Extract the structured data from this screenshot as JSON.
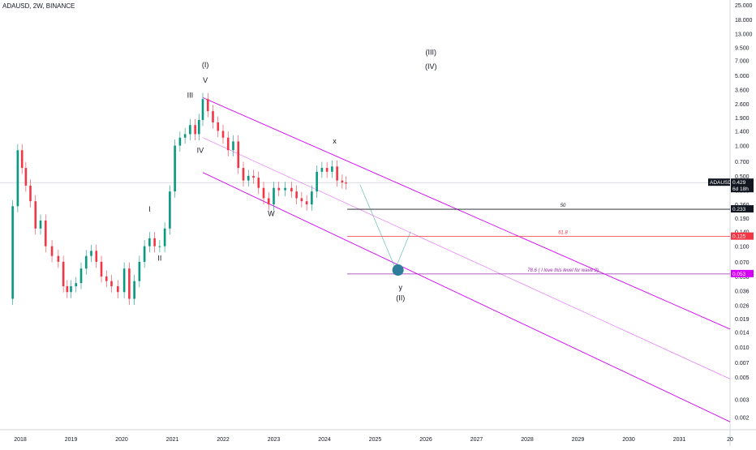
{
  "header": {
    "symbol_line": "ADAUSD, 2W, BINANCE"
  },
  "chart_data": {
    "type": "candlestick",
    "y_scale": "log",
    "ylim": [
      0.0015,
      28
    ],
    "xlim": [
      2017.6,
      2032.0
    ],
    "x_ticks": [
      "2018",
      "2019",
      "2020",
      "2021",
      "2022",
      "2023",
      "2024",
      "2025",
      "2026",
      "2027",
      "2028",
      "2029",
      "2030",
      "2031",
      "20"
    ],
    "y_ticks": [
      "25.000",
      "18.000",
      "13.000",
      "9.500",
      "7.000",
      "5.000",
      "3.600",
      "2.600",
      "1.900",
      "1.400",
      "1.000",
      "0.700",
      "0.500",
      "0.360",
      "0.260",
      "0.190",
      "0.140",
      "0.100",
      "0.070",
      "0.050",
      "0.036",
      "0.026",
      "0.019",
      "0.014",
      "0.010",
      "0.007",
      "0.005",
      "0.003",
      "0.002"
    ],
    "price_labels": [
      {
        "text": "ADAUSD",
        "kind": "symbol",
        "value": 0.429
      },
      {
        "text": "0.429",
        "kind": "last",
        "value": 0.429
      },
      {
        "text": "6d 18h",
        "kind": "countdown",
        "value": 0.429
      },
      {
        "text": "0.233",
        "kind": "level50",
        "value": 0.233
      },
      {
        "text": "0.125",
        "kind": "level618",
        "value": 0.125
      },
      {
        "text": "0.053",
        "kind": "level786",
        "value": 0.053
      }
    ],
    "current_price": 0.429,
    "price_path": [
      [
        2017.8,
        0.03
      ],
      [
        2017.9,
        0.25
      ],
      [
        2018.0,
        0.9
      ],
      [
        2018.07,
        0.6
      ],
      [
        2018.15,
        0.4
      ],
      [
        2018.25,
        0.28
      ],
      [
        2018.35,
        0.15
      ],
      [
        2018.45,
        0.18
      ],
      [
        2018.55,
        0.1
      ],
      [
        2018.7,
        0.08
      ],
      [
        2018.8,
        0.07
      ],
      [
        2018.9,
        0.04
      ],
      [
        2018.95,
        0.035
      ],
      [
        2019.05,
        0.04
      ],
      [
        2019.15,
        0.043
      ],
      [
        2019.25,
        0.06
      ],
      [
        2019.35,
        0.08
      ],
      [
        2019.45,
        0.09
      ],
      [
        2019.55,
        0.07
      ],
      [
        2019.65,
        0.05
      ],
      [
        2019.75,
        0.045
      ],
      [
        2019.85,
        0.04
      ],
      [
        2020.0,
        0.035
      ],
      [
        2020.1,
        0.06
      ],
      [
        2020.2,
        0.03
      ],
      [
        2020.3,
        0.045
      ],
      [
        2020.4,
        0.07
      ],
      [
        2020.5,
        0.1
      ],
      [
        2020.6,
        0.12
      ],
      [
        2020.7,
        0.1
      ],
      [
        2020.8,
        0.1
      ],
      [
        2020.9,
        0.15
      ],
      [
        2021.0,
        0.35
      ],
      [
        2021.1,
        1.0
      ],
      [
        2021.2,
        1.2
      ],
      [
        2021.3,
        1.3
      ],
      [
        2021.4,
        1.6
      ],
      [
        2021.5,
        1.3
      ],
      [
        2021.55,
        1.8
      ],
      [
        2021.65,
        2.9
      ],
      [
        2021.75,
        2.2
      ],
      [
        2021.85,
        1.7
      ],
      [
        2021.95,
        1.4
      ],
      [
        2022.05,
        1.2
      ],
      [
        2022.15,
        0.9
      ],
      [
        2022.25,
        1.1
      ],
      [
        2022.35,
        0.6
      ],
      [
        2022.45,
        0.45
      ],
      [
        2022.55,
        0.5
      ],
      [
        2022.65,
        0.48
      ],
      [
        2022.75,
        0.38
      ],
      [
        2022.85,
        0.3
      ],
      [
        2022.95,
        0.26
      ],
      [
        2023.05,
        0.38
      ],
      [
        2023.15,
        0.36
      ],
      [
        2023.3,
        0.38
      ],
      [
        2023.4,
        0.35
      ],
      [
        2023.5,
        0.3
      ],
      [
        2023.6,
        0.28
      ],
      [
        2023.7,
        0.26
      ],
      [
        2023.8,
        0.35
      ],
      [
        2023.9,
        0.55
      ],
      [
        2024.0,
        0.6
      ],
      [
        2024.1,
        0.55
      ],
      [
        2024.2,
        0.62
      ],
      [
        2024.3,
        0.45
      ],
      [
        2024.4,
        0.43
      ],
      [
        2024.45,
        0.42
      ]
    ],
    "channel_lines": [
      {
        "points": [
          [
            2021.6,
            3.0
          ],
          [
            2032.0,
            0.015
          ]
        ]
      },
      {
        "points": [
          [
            2021.6,
            1.2
          ],
          [
            2032.0,
            0.0048
          ]
        ]
      },
      {
        "points": [
          [
            2021.6,
            0.54
          ],
          [
            2032.0,
            0.0018
          ]
        ]
      }
    ],
    "horizontal_levels": [
      {
        "label": "50",
        "value": 0.233,
        "color": "#131722",
        "start_x": 2024.45
      },
      {
        "label": "61.8",
        "value": 0.125,
        "color": "#f23645",
        "start_x": 2024.45
      },
      {
        "label": "78.6 ( I love this level for wave 2)",
        "value": 0.053,
        "color": "#9c27b0",
        "start_x": 2024.45
      }
    ],
    "projection_path": [
      [
        2024.7,
        0.41
      ],
      [
        2025.4,
        0.06
      ],
      [
        2025.7,
        0.14
      ]
    ],
    "target_circle": {
      "x": 2025.45,
      "y": 0.058
    },
    "wave_labels": [
      {
        "text": "(I)",
        "x": 2021.65,
        "y": 6.0
      },
      {
        "text": "V",
        "x": 2021.65,
        "y": 4.2
      },
      {
        "text": "III",
        "x": 2021.35,
        "y": 3.0
      },
      {
        "text": "IV",
        "x": 2021.55,
        "y": 0.85
      },
      {
        "text": "I",
        "x": 2020.55,
        "y": 0.22
      },
      {
        "text": "II",
        "x": 2020.75,
        "y": 0.072
      },
      {
        "text": "W",
        "x": 2022.95,
        "y": 0.2
      },
      {
        "text": "x",
        "x": 2024.2,
        "y": 1.05
      },
      {
        "text": "y",
        "x": 2025.5,
        "y": 0.037
      },
      {
        "text": "(II)",
        "x": 2025.5,
        "y": 0.029
      },
      {
        "text": "(III)",
        "x": 2026.1,
        "y": 8.0
      },
      {
        "text": "(IV)",
        "x": 2026.1,
        "y": 5.8
      }
    ],
    "colors": {
      "up": "#089981",
      "down": "#f23645",
      "channel": "#d500f9"
    }
  }
}
